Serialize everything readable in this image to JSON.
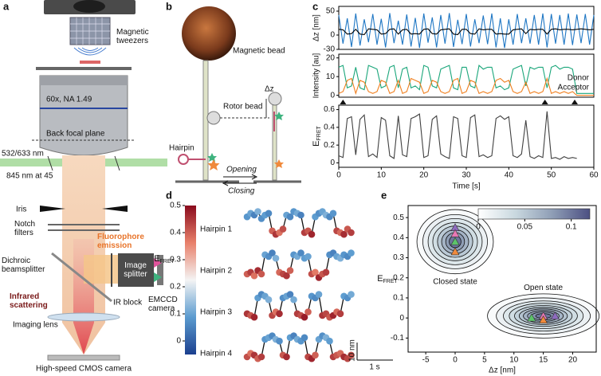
{
  "panel_labels": [
    "a",
    "b",
    "c",
    "d",
    "e"
  ],
  "diagram_a": {
    "magnetic_tweezers": [
      "Magnetic",
      "tweezers"
    ],
    "objective": "60x, NA 1.49",
    "back_focal_plane": "Back focal plane",
    "laser_visible": "532/633 nm",
    "laser_ir": "845 nm at 45",
    "iris": "Iris",
    "notch_filters": [
      "Notch",
      "filters"
    ],
    "fluorophore_emission": [
      "Fluorophore",
      "emission"
    ],
    "dichroic": [
      "Dichroic",
      "beamsplitter"
    ],
    "image_splitter": [
      "Image",
      "splitter"
    ],
    "ir_block": "IR block",
    "emccd": [
      "EMCCD",
      "camera"
    ],
    "infrared_scattering": [
      "Infrared",
      "scattering"
    ],
    "imaging_lens": "Imaging lens",
    "cmos": "High-speed CMOS camera"
  },
  "diagram_b": {
    "magnetic_bead": "Magnetic bead",
    "rotor_bead": "Rotor bead",
    "delta_z": "Δz",
    "hairpin": "Hairpin",
    "opening": "Opening",
    "closing": "Closing"
  },
  "chart_data": [
    {
      "type": "line",
      "ylabel": "Δz [nm]",
      "x": [
        0,
        1,
        2,
        3,
        4,
        5,
        6,
        7,
        8,
        9,
        10,
        11,
        12,
        13,
        14,
        15,
        16,
        17,
        18,
        19,
        20,
        21,
        22,
        23,
        24,
        25,
        26,
        27,
        28,
        29,
        30,
        31,
        32,
        33,
        34,
        35,
        36,
        37,
        38,
        39,
        40,
        41,
        42,
        43,
        44,
        45,
        46,
        47,
        48,
        49,
        50,
        51,
        52,
        53,
        54,
        55,
        56,
        57,
        58,
        59,
        60
      ],
      "xlim": [
        0,
        60
      ],
      "ylim": [
        -30,
        60
      ],
      "yticks": [
        -30,
        0,
        50
      ],
      "series": [
        {
          "color": "#1f77c4",
          "values": [
            42,
            -18,
            35,
            -25,
            45,
            -22,
            33,
            -15,
            44,
            -20,
            34,
            -26,
            46,
            -17,
            30,
            -20,
            43,
            -24,
            36,
            -27,
            45,
            -16,
            37,
            -26,
            42,
            -18,
            46,
            -25,
            32,
            -19,
            44,
            -24,
            33,
            -17,
            41,
            -19,
            45,
            -26,
            35,
            -27,
            33,
            -20,
            44,
            -17,
            35,
            -18,
            42,
            -20,
            45,
            -26,
            44,
            -18,
            42,
            -20,
            45,
            -21,
            43,
            -17,
            44,
            -20,
            42
          ]
        },
        {
          "color": "#000000",
          "values": [
            12,
            11,
            2,
            3,
            12,
            2,
            1,
            13,
            12,
            11,
            2,
            3,
            12,
            13,
            2,
            11,
            12,
            2,
            3,
            2,
            12,
            13,
            3,
            2,
            11,
            12,
            13,
            2,
            1,
            12,
            12,
            3,
            2,
            13,
            11,
            12,
            12,
            2,
            3,
            2,
            2,
            11,
            12,
            13,
            3,
            12,
            11,
            12,
            12,
            2,
            12,
            13,
            11,
            12,
            12,
            11,
            12,
            13,
            12,
            11,
            12
          ]
        }
      ]
    },
    {
      "type": "line",
      "ylabel": "Intensity [au]",
      "x": [
        0,
        1,
        2,
        3,
        4,
        5,
        6,
        7,
        8,
        9,
        10,
        11,
        12,
        13,
        14,
        15,
        16,
        17,
        18,
        19,
        20,
        21,
        22,
        23,
        24,
        25,
        26,
        27,
        28,
        29,
        30,
        31,
        32,
        33,
        34,
        35,
        36,
        37,
        38,
        39,
        40,
        41,
        42,
        43,
        44,
        45,
        46,
        47,
        48,
        49,
        50,
        51,
        52,
        53,
        54,
        55,
        56,
        57,
        58,
        59,
        60
      ],
      "xlim": [
        0,
        60
      ],
      "ylim": [
        -1,
        22
      ],
      "yticks": [
        0,
        10,
        20
      ],
      "markers_x": [
        1,
        48.5,
        55.5
      ],
      "series": [
        {
          "name": "Donor",
          "color": "#1aa67a",
          "values": [
            15,
            16,
            4,
            5,
            15,
            4,
            3,
            16,
            15,
            14,
            4,
            5,
            15,
            16,
            4,
            14,
            15,
            4,
            5,
            3,
            16,
            15,
            5,
            4,
            14,
            15,
            16,
            4,
            3,
            15,
            15,
            5,
            4,
            16,
            14,
            15,
            15,
            4,
            5,
            3,
            4,
            14,
            15,
            16,
            5,
            15,
            14,
            15,
            15,
            4,
            15,
            16,
            14,
            15,
            15,
            14,
            1,
            1,
            1,
            1,
            1
          ]
        },
        {
          "name": "Acceptor",
          "color": "#f07f1e",
          "values": [
            1,
            2,
            8,
            9,
            1,
            8,
            7,
            2,
            1,
            2,
            8,
            7,
            1,
            2,
            8,
            1,
            2,
            9,
            8,
            7,
            1,
            2,
            8,
            7,
            2,
            1,
            2,
            8,
            9,
            1,
            2,
            8,
            7,
            1,
            2,
            1,
            2,
            8,
            9,
            7,
            8,
            2,
            1,
            2,
            7,
            1,
            2,
            1,
            2,
            9,
            1,
            2,
            1,
            2,
            1,
            2,
            0,
            0,
            0,
            0,
            0
          ]
        }
      ]
    },
    {
      "type": "line",
      "ylabel": {
        "main": "E",
        "sub": "FRET"
      },
      "xlabel": "Time [s]",
      "x": [
        0,
        1,
        2,
        3,
        4,
        5,
        6,
        7,
        8,
        9,
        10,
        11,
        12,
        13,
        14,
        15,
        16,
        17,
        18,
        19,
        20,
        21,
        22,
        23,
        24,
        25,
        26,
        27,
        28,
        29,
        30,
        31,
        32,
        33,
        34,
        35,
        36,
        37,
        38,
        39,
        40,
        41,
        42,
        43,
        44,
        45,
        46,
        47,
        48,
        49,
        50,
        51,
        52,
        53,
        54,
        55,
        56,
        57,
        58,
        59,
        60
      ],
      "xlim": [
        0,
        60
      ],
      "xticks": [
        0,
        10,
        20,
        30,
        40,
        50,
        60
      ],
      "ylim": [
        -0.05,
        0.65
      ],
      "yticks": [
        0,
        0.2,
        0.4,
        0.6
      ],
      "series": [
        {
          "color": "#404040",
          "values": [
            0.08,
            0.06,
            0.5,
            0.52,
            0.09,
            0.49,
            0.54,
            0.07,
            0.1,
            0.06,
            0.51,
            0.48,
            0.08,
            0.05,
            0.53,
            0.09,
            0.07,
            0.5,
            0.52,
            0.55,
            0.06,
            0.08,
            0.49,
            0.53,
            0.1,
            0.07,
            0.05,
            0.52,
            0.5,
            0.08,
            0.06,
            0.51,
            0.54,
            0.07,
            0.09,
            0.06,
            0.08,
            0.5,
            0.53,
            0.49,
            0.52,
            0.08,
            0.06,
            0.1,
            0.48,
            0.07,
            0.05,
            0.08,
            0.06,
            0.58,
            0.05,
            0.06,
            0.04,
            0.07,
            0.05,
            0.06,
            0.05,
            null,
            null,
            null,
            null
          ]
        }
      ]
    },
    {
      "type": "scatter",
      "colorbar_label": {
        "main": "E",
        "sub": "FRET"
      },
      "clim": [
        -0.05,
        0.5
      ],
      "cticks": [
        0,
        0.1,
        0.2,
        0.3,
        0.4,
        0.5
      ],
      "colormap": [
        "#1b3f8f",
        "#5b9bcf",
        "#f4f4f4",
        "#e8806a",
        "#8a0b1d"
      ],
      "x": [
        0,
        0.1,
        0.2,
        0.3,
        0.4,
        0.5,
        0.6,
        0.7,
        0.8,
        0.9,
        1,
        1.1,
        1.2,
        1.3,
        1.4,
        1.5,
        1.6,
        1.7,
        1.8,
        1.9,
        2,
        2.1,
        2.2,
        2.3,
        2.4,
        2.5,
        2.6,
        2.7,
        2.8,
        2.9
      ],
      "scalebar": {
        "z": 10,
        "z_label": "10 nm",
        "t": 1,
        "t_label": "1 s"
      },
      "series": [
        {
          "name": "Hairpin 1",
          "values": [
            9,
            11,
            10,
            12,
            8,
            10,
            11,
            1,
            -1,
            0,
            2,
            10,
            9,
            12,
            11,
            10,
            0,
            1,
            -1,
            9,
            11,
            12,
            10,
            9,
            11,
            1,
            0,
            -1,
            2,
            0
          ],
          "color_values": [
            0.08,
            0.1,
            0.05,
            0.12,
            0.07,
            0.09,
            0.06,
            0.4,
            0.45,
            0.38,
            0.42,
            0.1,
            0.06,
            0.08,
            0.11,
            0.05,
            0.44,
            0.41,
            0.47,
            0.09,
            0.07,
            0.1,
            0.12,
            0.06,
            0.08,
            0.43,
            0.39,
            0.46,
            0.41,
            0.44
          ]
        },
        {
          "name": "Hairpin 2",
          "values": [
            0,
            1,
            -1,
            2,
            0,
            11,
            10,
            12,
            9,
            1,
            0,
            -1,
            2,
            11,
            10,
            12,
            9,
            10,
            0,
            1,
            -2,
            0,
            1,
            11,
            12,
            10,
            9,
            11,
            10,
            12
          ],
          "color_values": [
            0.4,
            0.44,
            0.38,
            0.46,
            0.41,
            0.1,
            0.07,
            0.05,
            0.12,
            0.39,
            0.43,
            0.45,
            0.4,
            0.08,
            0.11,
            0.06,
            0.09,
            0.1,
            0.42,
            0.37,
            0.47,
            0.41,
            0.44,
            0.07,
            0.05,
            0.1,
            0.12,
            0.08,
            0.06,
            0.09
          ]
        },
        {
          "name": "Hairpin 3",
          "values": [
            1,
            0,
            -1,
            10,
            12,
            11,
            9,
            0,
            2,
            1,
            10,
            11,
            12,
            9,
            1,
            0,
            -1,
            2,
            11,
            10,
            12,
            0,
            1,
            -1,
            0,
            2,
            1,
            11,
            10,
            12
          ],
          "color_values": [
            0.45,
            0.41,
            0.47,
            0.09,
            0.06,
            0.1,
            0.12,
            0.43,
            0.38,
            0.46,
            0.07,
            0.1,
            0.05,
            0.11,
            0.44,
            0.42,
            0.48,
            0.4,
            0.08,
            0.06,
            0.1,
            0.45,
            0.43,
            0.41,
            0.47,
            0.39,
            0.44,
            0.09,
            0.07,
            0.11
          ]
        },
        {
          "name": "Hairpin 4",
          "values": [
            0,
            2,
            1,
            -1,
            0,
            10,
            11,
            12,
            10,
            9,
            1,
            0,
            11,
            12,
            10,
            9,
            11,
            0,
            -1,
            1,
            10,
            12,
            11,
            9,
            0,
            1,
            2,
            0,
            -1,
            1
          ],
          "color_values": [
            0.42,
            0.38,
            0.45,
            0.4,
            0.44,
            0.08,
            0.1,
            0.06,
            0.12,
            0.07,
            0.41,
            0.46,
            0.09,
            0.05,
            0.11,
            0.08,
            0.06,
            0.43,
            0.47,
            0.4,
            0.1,
            0.07,
            0.12,
            0.09,
            0.44,
            0.41,
            0.39,
            0.46,
            0.43,
            0.42
          ]
        }
      ]
    },
    {
      "type": "contour",
      "xlabel": "Δz [nm]",
      "ylabel": {
        "main": "E",
        "sub": "FRET"
      },
      "xlim": [
        -8,
        24
      ],
      "xticks": [
        -5,
        0,
        5,
        10,
        15,
        20
      ],
      "ylim": [
        -0.17,
        0.56
      ],
      "yticks": [
        -0.1,
        0,
        0.1,
        0.2,
        0.3,
        0.4,
        0.5
      ],
      "clim": [
        0,
        0.12
      ],
      "cticks": [
        0,
        0.05,
        0.1
      ],
      "colormap": [
        "#ffffff",
        "#c9d8df",
        "#8e9db5",
        "#4c4f82"
      ],
      "states": [
        {
          "name": "Closed state",
          "center": [
            0,
            0.38
          ],
          "levels": [
            0.005,
            0.015,
            0.025,
            0.035,
            0.05,
            0.065,
            0.08,
            0.1
          ],
          "rx": [
            6.5,
            5.5,
            4.6,
            3.8,
            3,
            2.3,
            1.6,
            1
          ],
          "ry": [
            0.16,
            0.135,
            0.115,
            0.095,
            0.078,
            0.06,
            0.045,
            0.03
          ]
        },
        {
          "name": "Open state",
          "center": [
            15,
            0.01
          ],
          "levels": [
            0.005,
            0.015,
            0.025,
            0.035,
            0.045,
            0.055,
            0.065,
            0.075,
            0.085,
            0.1
          ],
          "rx": [
            9.5,
            8,
            6.8,
            5.8,
            4.9,
            4.1,
            3.4,
            2.7,
            2,
            1.3
          ],
          "ry": [
            0.11,
            0.09,
            0.075,
            0.063,
            0.052,
            0.043,
            0.035,
            0.027,
            0.02,
            0.012
          ]
        }
      ],
      "markers": [
        {
          "color": "#8e6bbf",
          "x": 0,
          "y": 0.45
        },
        {
          "color": "#e878b4",
          "x": 0,
          "y": 0.42
        },
        {
          "color": "#5cc36a",
          "x": 0,
          "y": 0.38
        },
        {
          "color": "#f08a3c",
          "x": 0,
          "y": 0.33
        },
        {
          "color": "#5cc36a",
          "x": 13,
          "y": 0
        },
        {
          "color": "#e878b4",
          "x": 15,
          "y": 0.01
        },
        {
          "color": "#8e6bbf",
          "x": 17,
          "y": 0.01
        },
        {
          "color": "#f08a3c",
          "x": 15,
          "y": -0.01
        }
      ]
    }
  ]
}
